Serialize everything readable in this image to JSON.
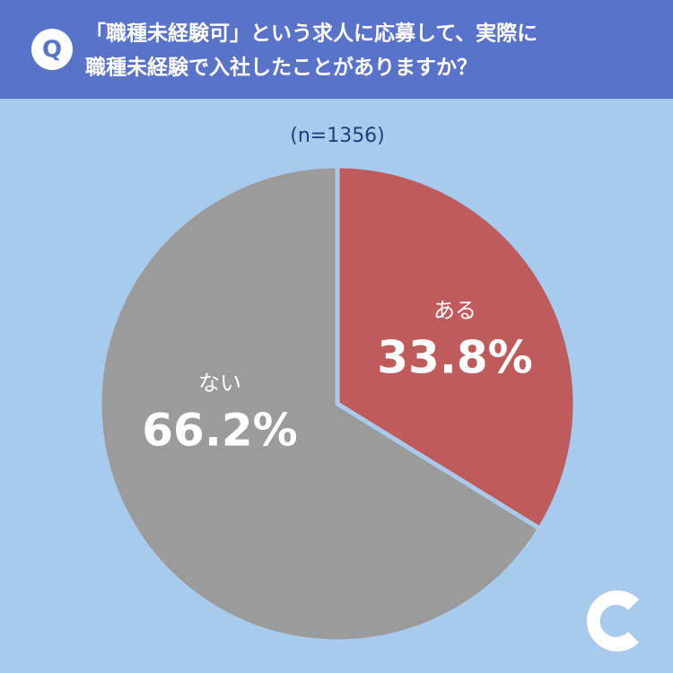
{
  "chart_data": {
    "type": "pie",
    "badge": "Q",
    "title": [
      "「職種未経験可」という求人に応募して、実際に",
      "職種未経験で入社したことがありますか？"
    ],
    "subtitle": "(n=1356)",
    "categories": [
      "ある",
      "ない"
    ],
    "values": [
      33.8,
      66.2
    ],
    "value_labels": [
      "33.8%",
      "66.2%"
    ],
    "colors": [
      "#bf5b5b",
      "#9b9b9b"
    ]
  }
}
